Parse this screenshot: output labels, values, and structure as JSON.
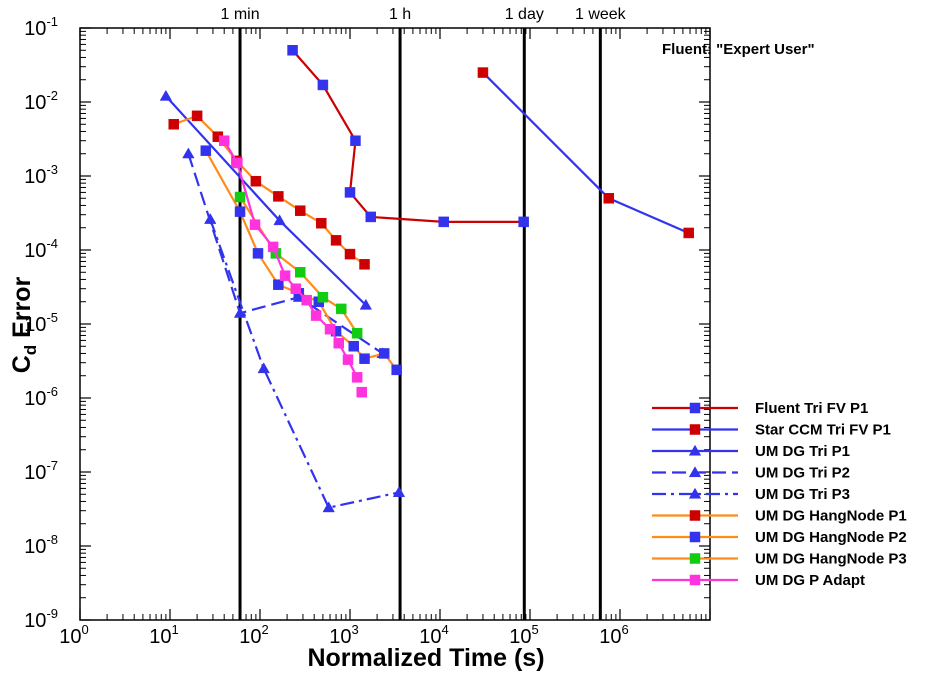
{
  "chart_data": {
    "type": "line",
    "xlabel": "Normalized Time (s)",
    "ylabel_main": "C",
    "ylabel_sub": "d",
    "ylabel_rest": " Error",
    "xscale": "log",
    "yscale": "log",
    "xlim_exp": [
      0,
      7
    ],
    "ylim_exp": [
      -9,
      -1
    ],
    "xtick_base": "10",
    "ytick_base": "10",
    "xtick_exponents": [
      "0",
      "1",
      "2",
      "3",
      "4",
      "5",
      "6"
    ],
    "ytick_exponents": [
      "-9",
      "-8",
      "-7",
      "-6",
      "-5",
      "-4",
      "-3",
      "-2",
      "-1"
    ],
    "annotation": "Fluent: \"Expert User\"",
    "legend_position": "bottom-right",
    "reference_lines": [
      {
        "label": "1 min",
        "x": 60
      },
      {
        "label": "1 h",
        "x": 3600
      },
      {
        "label": "1 day",
        "x": 86400
      },
      {
        "label": "1 week",
        "x": 604800
      }
    ],
    "series": [
      {
        "name": "Fluent Tri FV P1",
        "color": "#cc0000",
        "marker": "square",
        "marker_color": "#3333ee",
        "dash": "solid",
        "x": [
          230,
          500,
          1150,
          1000,
          1700,
          11000,
          85000
        ],
        "y": [
          0.05,
          0.017,
          0.003,
          0.0006,
          0.00028,
          0.00024,
          0.00024
        ]
      },
      {
        "name": "Star CCM Tri FV P1",
        "color": "#3333ee",
        "marker": "square",
        "marker_color": "#cc0000",
        "dash": "solid",
        "x": [
          30000,
          750000,
          5800000
        ],
        "y": [
          0.025,
          0.0005,
          0.00017
        ]
      },
      {
        "name": "UM DG Tri P1",
        "color": "#3333ee",
        "marker": "triangle",
        "marker_color": "#3333ee",
        "dash": "solid",
        "x": [
          9,
          165,
          1500
        ],
        "y": [
          0.012,
          0.00025,
          1.8e-05
        ]
      },
      {
        "name": "UM DG Tri P2",
        "color": "#3333ee",
        "marker": "triangle",
        "marker_color": "#3333ee",
        "dash": "dash",
        "x": [
          16,
          60,
          270,
          2300
        ],
        "y": [
          0.002,
          1.4e-05,
          2.3e-05,
          4e-06
        ]
      },
      {
        "name": "UM DG Tri P3",
        "color": "#3333ee",
        "marker": "triangle",
        "marker_color": "#3333ee",
        "dash": "dashdot",
        "x": [
          28,
          110,
          580,
          3500
        ],
        "y": [
          0.00026,
          2.5e-06,
          3.3e-08,
          5.3e-08
        ]
      },
      {
        "name": "UM DG HangNode P1",
        "color": "#ff8c1a",
        "marker": "square",
        "marker_color": "#cc0000",
        "dash": "solid",
        "x": [
          11,
          20,
          34,
          55,
          90,
          160,
          280,
          480,
          700,
          1000,
          1450
        ],
        "y": [
          0.005,
          0.0065,
          0.0034,
          0.0016,
          0.00085,
          0.00053,
          0.00034,
          0.00023,
          0.000135,
          8.8e-05,
          6.4e-05
        ]
      },
      {
        "name": "UM DG HangNode P2",
        "color": "#ff8c1a",
        "marker": "square",
        "marker_color": "#3333ee",
        "dash": "solid",
        "x": [
          25,
          60,
          95,
          160,
          270,
          450,
          700,
          1100,
          1450,
          2400,
          3300
        ],
        "y": [
          0.0022,
          0.00033,
          9e-05,
          3.4e-05,
          2.6e-05,
          2e-05,
          8e-06,
          5e-06,
          3.4e-06,
          4e-06,
          2.4e-06
        ]
      },
      {
        "name": "UM DG HangNode P3",
        "color": "#ff8c1a",
        "marker": "square",
        "marker_color": "#11cc11",
        "dash": "solid",
        "x": [
          60,
          150,
          280,
          500,
          800,
          1200
        ],
        "y": [
          0.00052,
          9e-05,
          5e-05,
          2.3e-05,
          1.6e-05,
          7.5e-06
        ]
      },
      {
        "name": "UM DG P Adapt",
        "color": "#ff33dd",
        "marker": "square",
        "marker_color": "#ff33dd",
        "dash": "solid",
        "x": [
          40,
          56,
          88,
          140,
          190,
          250,
          330,
          420,
          600,
          750,
          950,
          1200
        ],
        "y": [
          0.003,
          0.0015,
          0.00022,
          0.00011,
          4.5e-05,
          3e-05,
          2.1e-05,
          1.3e-05,
          8.5e-06,
          5.5e-06,
          3.3e-06,
          1.9e-06
        ]
      }
    ],
    "legend_extra_points": {
      "UM DG P Adapt": [
        1350,
        1.2e-06
      ]
    }
  }
}
